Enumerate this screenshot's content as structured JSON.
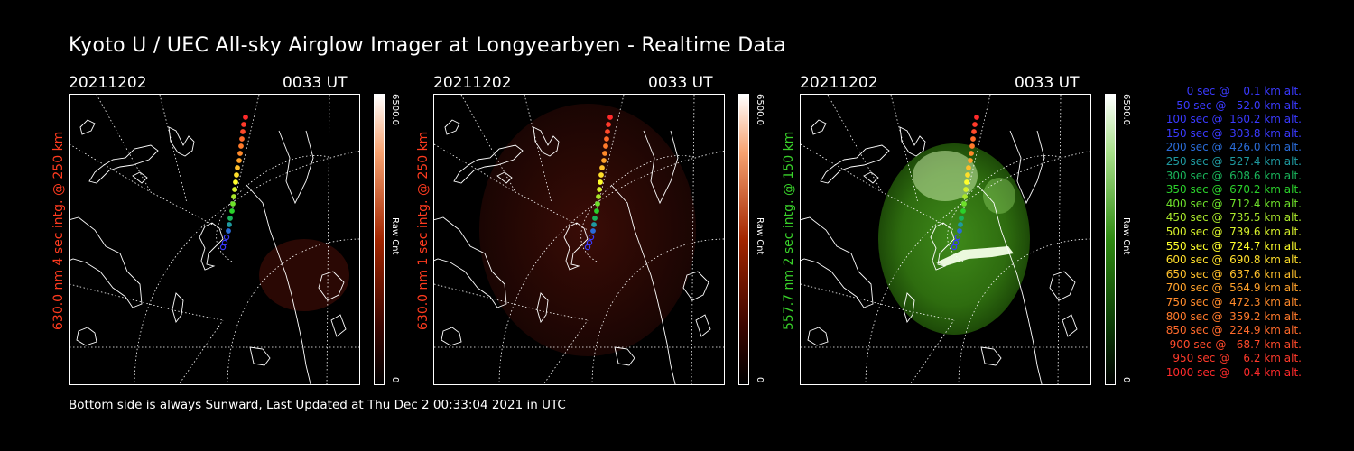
{
  "title": "Kyoto U / UEC All-sky Airglow Imager at Longyearbyen - Realtime Data",
  "panels": [
    {
      "date": "20211202",
      "time": "0033 UT",
      "label": "630.0 nm 4 sec intg. @ 250 km",
      "label_color": "#ff3b1f",
      "cbar_max": "6500.0",
      "cbar_min": "0",
      "cbar_unit": "Raw Cnt",
      "colormap": "red",
      "glow": "faint-red"
    },
    {
      "date": "20211202",
      "time": "0033 UT",
      "label": "630.0 nm 1 sec intg. @ 250 km",
      "label_color": "#ff3b1f",
      "cbar_max": "6500.0",
      "cbar_min": "0",
      "cbar_unit": "Raw Cnt",
      "colormap": "red",
      "glow": "dim-red"
    },
    {
      "date": "20211202",
      "time": "0033 UT",
      "label": "557.7 nm 2 sec intg. @ 150 km",
      "label_color": "#39d12a",
      "cbar_max": "6500.0",
      "cbar_min": "0",
      "cbar_unit": "Raw Cnt",
      "colormap": "green",
      "glow": "green-aurora"
    }
  ],
  "legend": [
    {
      "text": "   0 sec @    0.1 km alt.",
      "color": "#3a3aff"
    },
    {
      "text": "  50 sec @   52.0 km alt.",
      "color": "#3a3aff"
    },
    {
      "text": " 100 sec @  160.2 km alt.",
      "color": "#3a3aff"
    },
    {
      "text": " 150 sec @  303.8 km alt.",
      "color": "#3a3aff"
    },
    {
      "text": " 200 sec @  426.0 km alt.",
      "color": "#2a6cd8"
    },
    {
      "text": " 250 sec @  527.4 km alt.",
      "color": "#1f9aa0"
    },
    {
      "text": " 300 sec @  608.6 km alt.",
      "color": "#19b35a"
    },
    {
      "text": " 350 sec @  670.2 km alt.",
      "color": "#2bd12b"
    },
    {
      "text": " 400 sec @  712.4 km alt.",
      "color": "#6ee02b"
    },
    {
      "text": " 450 sec @  735.5 km alt.",
      "color": "#a8e62b"
    },
    {
      "text": " 500 sec @  739.6 km alt.",
      "color": "#d6f02b"
    },
    {
      "text": " 550 sec @  724.7 km alt.",
      "color": "#ffff2b"
    },
    {
      "text": " 600 sec @  690.8 km alt.",
      "color": "#ffdf2b"
    },
    {
      "text": " 650 sec @  637.6 km alt.",
      "color": "#ffc02b"
    },
    {
      "text": " 700 sec @  564.9 km alt.",
      "color": "#ffa22b"
    },
    {
      "text": " 750 sec @  472.3 km alt.",
      "color": "#ff8a2b"
    },
    {
      "text": " 800 sec @  359.2 km alt.",
      "color": "#ff7a2b"
    },
    {
      "text": " 850 sec @  224.9 km alt.",
      "color": "#ff6a2b"
    },
    {
      "text": " 900 sec @   68.7 km alt.",
      "color": "#ff4a2b"
    },
    {
      "text": " 950 sec @    6.2 km alt.",
      "color": "#ff3a2b"
    },
    {
      "text": "1000 sec @    0.4 km alt.",
      "color": "#ff2a2b"
    }
  ],
  "footer": "Bottom side is always Sunward, Last Updated at Thu Dec  2 00:33:04 2021 in UTC"
}
